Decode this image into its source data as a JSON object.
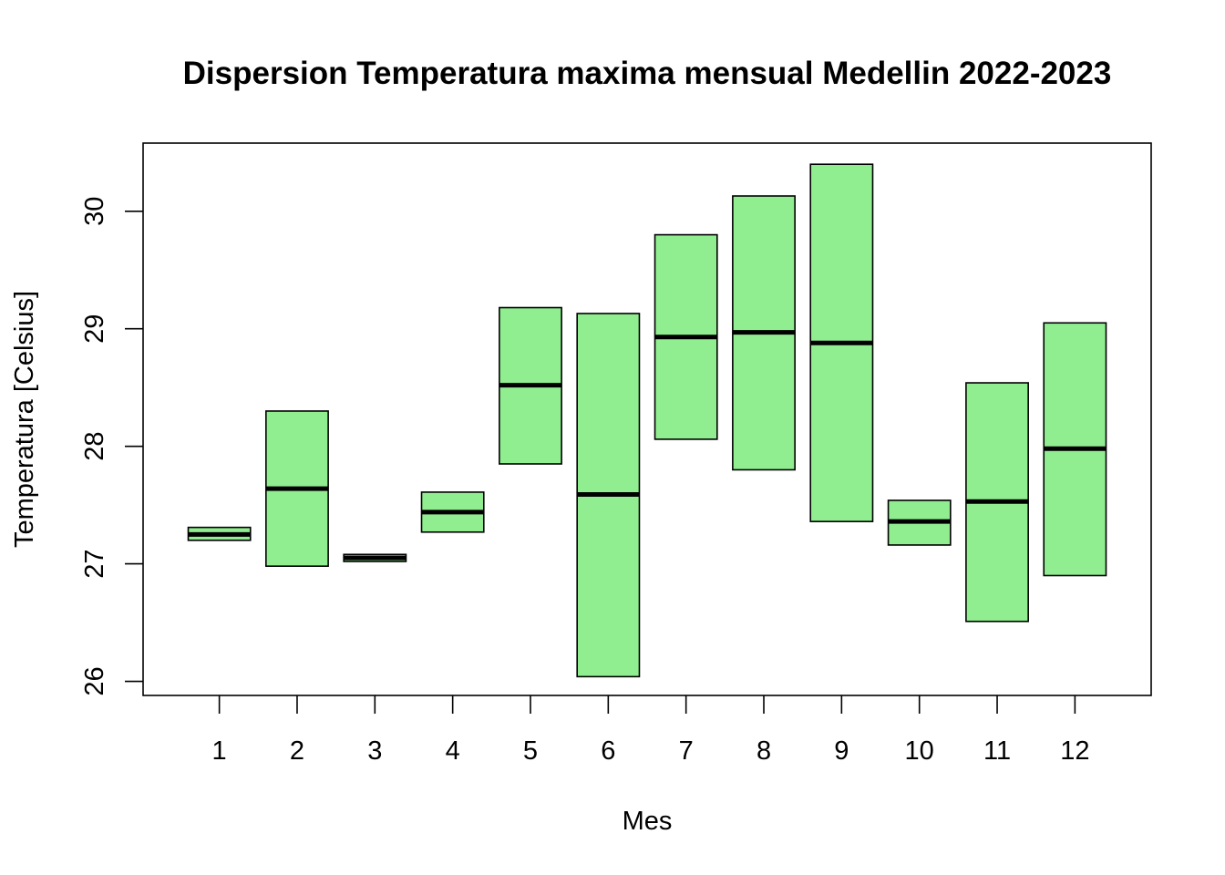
{
  "chart_data": {
    "type": "boxplot",
    "title": "Dispersion Temperatura maxima mensual Medellin 2022-2023",
    "xlabel": "Mes",
    "ylabel": "Temperatura [Celsius]",
    "categories": [
      "1",
      "2",
      "3",
      "4",
      "5",
      "6",
      "7",
      "8",
      "9",
      "10",
      "11",
      "12"
    ],
    "boxes": [
      {
        "min": 27.2,
        "median": 27.25,
        "max": 27.31
      },
      {
        "min": 26.98,
        "median": 27.64,
        "max": 28.3
      },
      {
        "min": 27.02,
        "median": 27.05,
        "max": 27.08
      },
      {
        "min": 27.27,
        "median": 27.44,
        "max": 27.61
      },
      {
        "min": 27.85,
        "median": 28.52,
        "max": 29.18
      },
      {
        "min": 26.04,
        "median": 27.59,
        "max": 29.13
      },
      {
        "min": 28.06,
        "median": 28.93,
        "max": 29.8
      },
      {
        "min": 27.8,
        "median": 28.97,
        "max": 30.13
      },
      {
        "min": 27.36,
        "median": 28.88,
        "max": 30.4
      },
      {
        "min": 27.16,
        "median": 27.36,
        "max": 27.54
      },
      {
        "min": 26.51,
        "median": 27.53,
        "max": 28.54
      },
      {
        "min": 26.9,
        "median": 27.98,
        "max": 29.05
      }
    ],
    "yticks": [
      26,
      27,
      28,
      29,
      30
    ],
    "ylim": [
      25.88,
      30.58
    ],
    "xlim": [
      0.02,
      12.98
    ],
    "box_color": "#90EE90",
    "grid": false,
    "legend": "none"
  }
}
